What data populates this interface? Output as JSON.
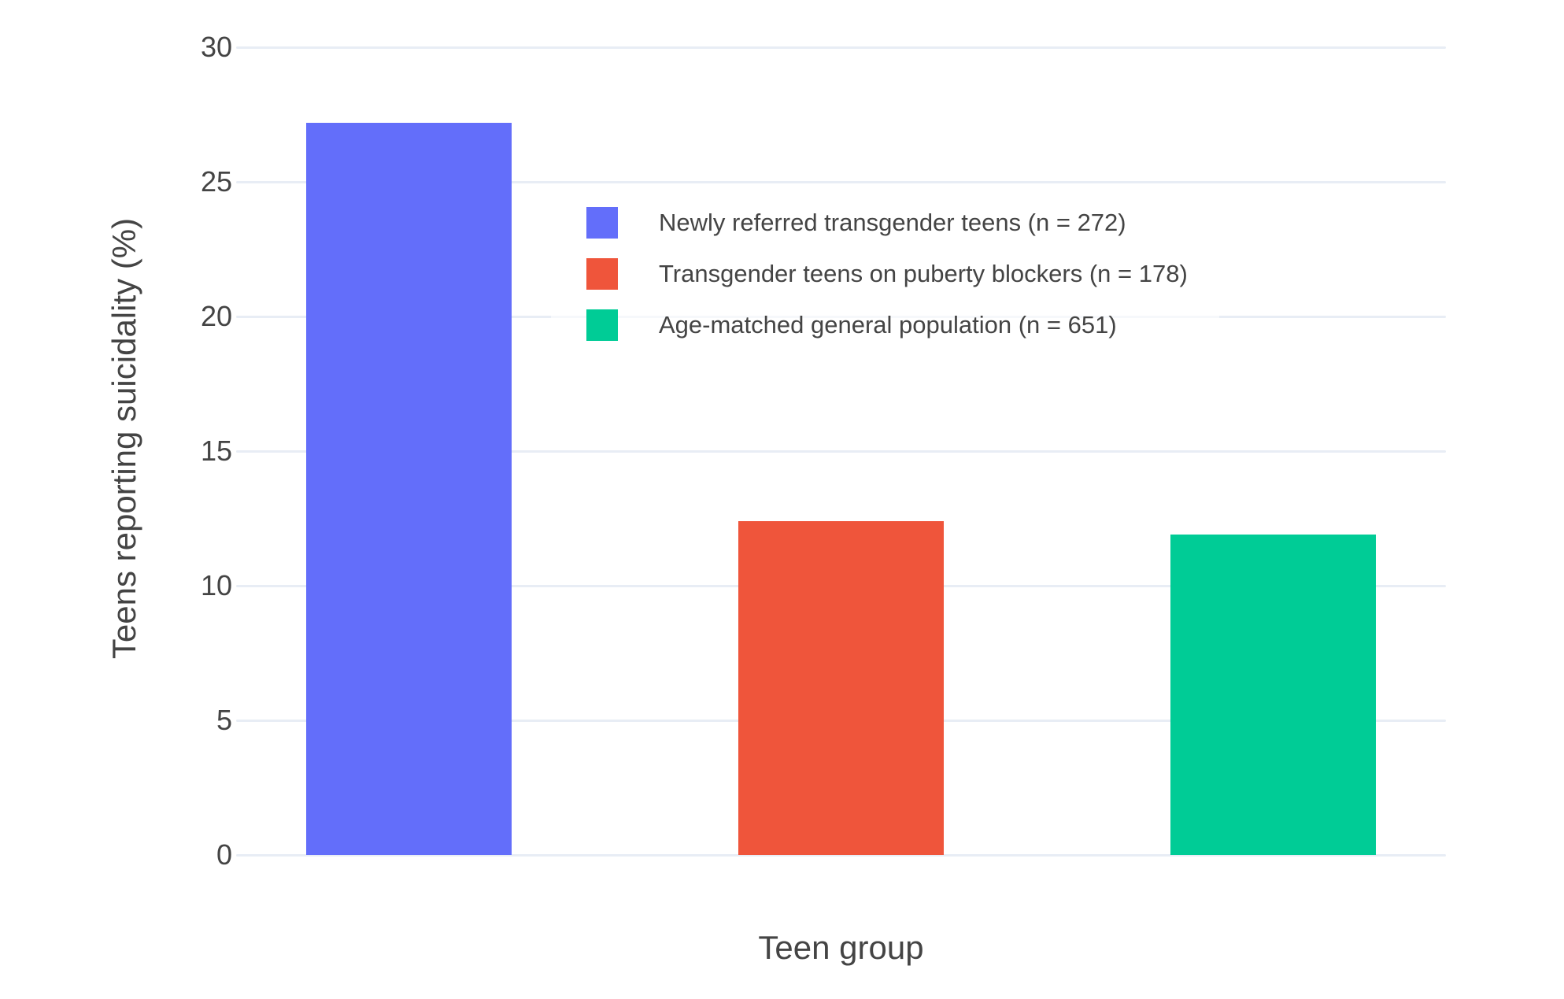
{
  "chart_data": {
    "type": "bar",
    "title": "",
    "xlabel": "Teen group",
    "ylabel": "Teens reporting suicidality (%)",
    "series": [
      {
        "name": "Newly referred transgender teens (n = 272)",
        "value": 27.2,
        "color": "#636EFA"
      },
      {
        "name": "Transgender teens on puberty blockers (n = 178)",
        "value": 12.4,
        "color": "#EF553B"
      },
      {
        "name": "Age-matched general population (n = 651)",
        "value": 11.9,
        "color": "#00CC96"
      }
    ],
    "ylim": [
      0,
      30
    ],
    "yticks": [
      0,
      5,
      10,
      15,
      20,
      25,
      30
    ],
    "grid": true,
    "legend_position": "inside-top-right",
    "colors": {
      "grid": "#E8EDF5",
      "text": "#444444",
      "background": "#FFFFFF"
    }
  }
}
